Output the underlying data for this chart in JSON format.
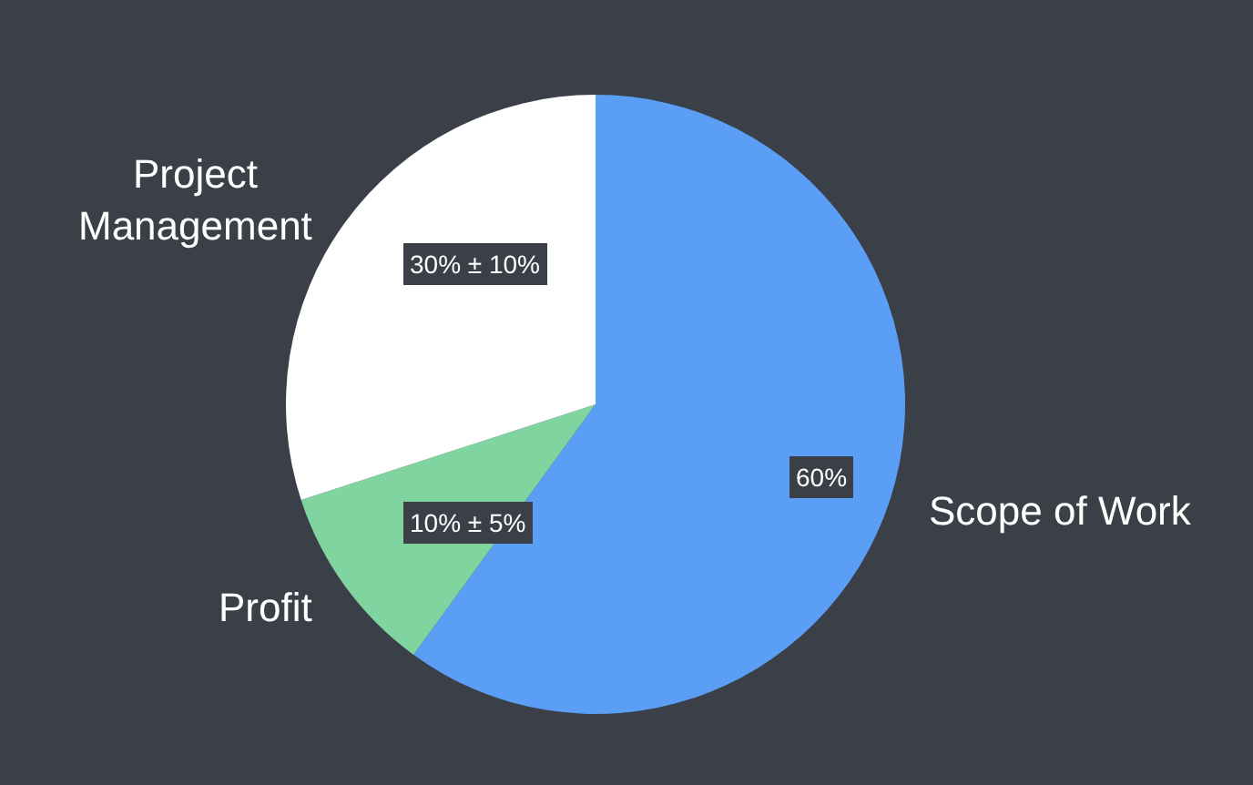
{
  "chart_data": {
    "type": "pie",
    "categories": [
      "Scope of Work",
      "Profit",
      "Project Management"
    ],
    "values": [
      60,
      10,
      30
    ],
    "colors": [
      "#5b9ef5",
      "#7fd49f",
      "#ffffff"
    ],
    "value_labels": [
      "60%",
      "10% ± 5%",
      "30% ± 10%"
    ]
  }
}
